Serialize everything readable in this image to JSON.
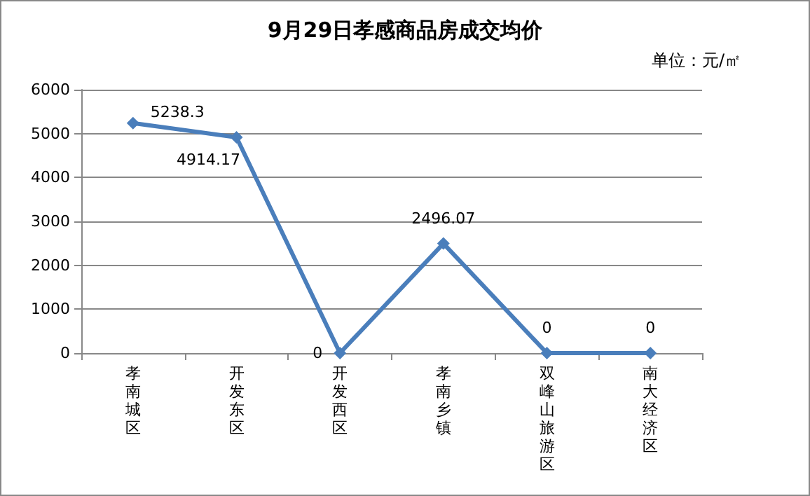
{
  "chart_data": {
    "type": "line",
    "title": "9月29日孝感商品房成交均价",
    "annotations": [
      "单位：元/㎡"
    ],
    "categories": [
      "孝南城区",
      "开发东区",
      "开发西区",
      "孝南乡镇",
      "双峰山旅游区",
      "南大经济区"
    ],
    "series": [
      {
        "color": "#4a7ebb",
        "values": [
          5238.3,
          4914.17,
          0,
          2496.07,
          0,
          0
        ]
      }
    ],
    "ylim": [
      0,
      6000
    ],
    "yticks": [
      0,
      1000,
      2000,
      3000,
      4000,
      5000,
      6000
    ],
    "grid": "y",
    "marker": "diamond",
    "line_style": "solid",
    "data_labels": true
  }
}
